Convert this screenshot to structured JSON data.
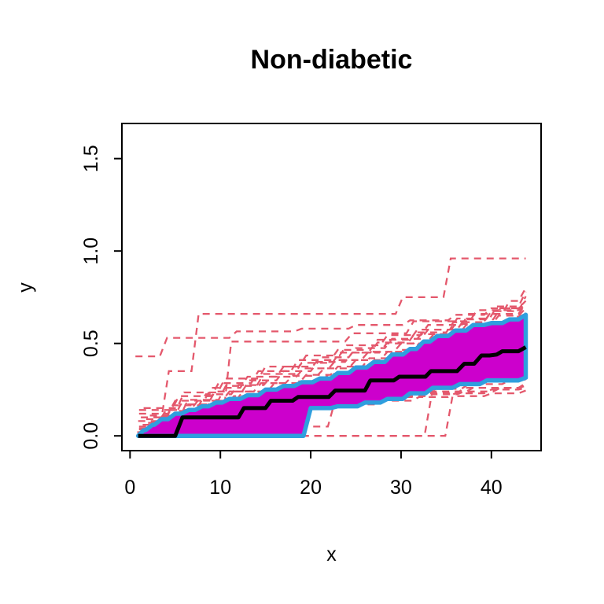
{
  "title": "Non-diabetic",
  "chart_data": {
    "type": "line",
    "title": "Non-diabetic",
    "xlabel": "x",
    "ylabel": "y",
    "x_ticks": [
      0,
      10,
      20,
      30,
      40
    ],
    "x_tick_labels": [
      "0",
      "10",
      "20",
      "30",
      "40"
    ],
    "y_ticks": [
      0.0,
      0.5,
      1.0,
      1.5
    ],
    "y_tick_labels": [
      "0.0",
      "0.5",
      "1.0",
      "1.5"
    ],
    "xlim": [
      -0.9,
      45.5
    ],
    "ylim": [
      -0.08,
      1.69
    ],
    "grid": false,
    "legend": "none",
    "colors": {
      "band_fill": "#CC00CC",
      "band_border": "#2F9FDE",
      "median": "#000000",
      "curves": "#E4586C",
      "axis": "#000000"
    },
    "band": {
      "upper": [
        [
          0.9,
          0
        ],
        [
          1.5,
          0.03
        ],
        [
          2.5,
          0.06
        ],
        [
          3.5,
          0.09
        ],
        [
          5,
          0.12
        ],
        [
          6.5,
          0.14
        ],
        [
          8,
          0.16
        ],
        [
          9.5,
          0.18
        ],
        [
          11,
          0.2
        ],
        [
          13,
          0.22
        ],
        [
          15,
          0.25
        ],
        [
          17,
          0.27
        ],
        [
          19,
          0.29
        ],
        [
          21,
          0.31
        ],
        [
          23,
          0.34
        ],
        [
          25,
          0.37
        ],
        [
          27,
          0.4
        ],
        [
          29,
          0.44
        ],
        [
          31,
          0.47
        ],
        [
          32.5,
          0.51
        ],
        [
          34,
          0.54
        ],
        [
          36,
          0.57
        ],
        [
          38,
          0.6
        ],
        [
          40,
          0.61
        ],
        [
          42,
          0.63
        ],
        [
          43.8,
          0.655
        ]
      ],
      "lower": [
        [
          0.9,
          0
        ],
        [
          18.8,
          0
        ],
        [
          20,
          0.15
        ],
        [
          23,
          0.16
        ],
        [
          26,
          0.18
        ],
        [
          28.5,
          0.2
        ],
        [
          31,
          0.23
        ],
        [
          33.5,
          0.26
        ],
        [
          36.5,
          0.28
        ],
        [
          39.5,
          0.3
        ],
        [
          43.8,
          0.315
        ]
      ]
    },
    "median": [
      [
        0.9,
        0
      ],
      [
        4.9,
        0
      ],
      [
        5.8,
        0.1
      ],
      [
        12,
        0.1
      ],
      [
        12.6,
        0.15
      ],
      [
        15,
        0.15
      ],
      [
        15.6,
        0.19
      ],
      [
        18,
        0.19
      ],
      [
        18.6,
        0.21
      ],
      [
        22,
        0.21
      ],
      [
        22.7,
        0.245
      ],
      [
        26,
        0.245
      ],
      [
        26.6,
        0.3
      ],
      [
        29.2,
        0.3
      ],
      [
        29.8,
        0.32
      ],
      [
        32.7,
        0.32
      ],
      [
        33.3,
        0.35
      ],
      [
        35.8,
        0.35
      ],
      [
        37,
        0.39
      ],
      [
        38.9,
        0.435
      ],
      [
        40.6,
        0.44
      ],
      [
        41.2,
        0.458
      ],
      [
        43,
        0.458
      ],
      [
        43.8,
        0.48
      ]
    ],
    "curves": [
      [
        [
          0.9,
          0
        ],
        [
          2.6,
          0.05
        ],
        [
          3.4,
          0.1
        ],
        [
          4.3,
          0.35
        ],
        [
          5.6,
          0.35
        ],
        [
          7.6,
          0.66
        ],
        [
          29.3,
          0.66
        ],
        [
          30.2,
          0.75
        ],
        [
          34.6,
          0.75
        ],
        [
          35.5,
          0.96
        ],
        [
          43.8,
          0.96
        ]
      ],
      [
        [
          1,
          0.02
        ],
        [
          4,
          0.07
        ],
        [
          8,
          0.11
        ],
        [
          10,
          0.14
        ],
        [
          11.2,
          0.51
        ],
        [
          23.8,
          0.51
        ],
        [
          24.6,
          0.555
        ],
        [
          30.6,
          0.555
        ],
        [
          31.4,
          0.62
        ],
        [
          37.6,
          0.62
        ],
        [
          38.4,
          0.68
        ],
        [
          43.8,
          0.71
        ]
      ],
      [
        [
          0.6,
          0.43
        ],
        [
          3.3,
          0.43
        ],
        [
          4.1,
          0.53
        ],
        [
          10.8,
          0.53
        ],
        [
          11.8,
          0.565
        ],
        [
          19,
          0.58
        ],
        [
          25,
          0.6
        ],
        [
          31,
          0.625
        ],
        [
          36,
          0.655
        ],
        [
          40,
          0.69
        ],
        [
          43.8,
          0.72
        ]
      ],
      [
        [
          0.9,
          0
        ],
        [
          32.6,
          0
        ],
        [
          33.4,
          0.225
        ],
        [
          37,
          0.24
        ],
        [
          41,
          0.26
        ],
        [
          43.8,
          0.27
        ]
      ],
      [
        [
          0.9,
          0
        ],
        [
          34.8,
          0
        ],
        [
          35.7,
          0.215
        ],
        [
          40,
          0.23
        ],
        [
          43.8,
          0.245
        ]
      ],
      [
        [
          1,
          0
        ],
        [
          5,
          0.02
        ],
        [
          10,
          0.04
        ],
        [
          15,
          0.05
        ],
        [
          21.9,
          0.05
        ],
        [
          22.7,
          0.19
        ],
        [
          27,
          0.21
        ],
        [
          32,
          0.23
        ],
        [
          37,
          0.26
        ],
        [
          43.8,
          0.28
        ]
      ],
      [
        [
          1,
          0
        ],
        [
          3,
          0.03
        ],
        [
          7,
          0.06
        ],
        [
          11,
          0.09
        ],
        [
          15,
          0.12
        ],
        [
          19.5,
          0.155
        ],
        [
          24,
          0.17
        ],
        [
          28,
          0.19
        ],
        [
          32,
          0.21
        ],
        [
          36,
          0.23
        ],
        [
          40,
          0.25
        ],
        [
          43.8,
          0.26
        ]
      ],
      [
        [
          1.3,
          0.01
        ],
        [
          4,
          0.05
        ],
        [
          8,
          0.08
        ],
        [
          12,
          0.11
        ],
        [
          16,
          0.14
        ],
        [
          20,
          0.17
        ],
        [
          24.5,
          0.19
        ],
        [
          29,
          0.215
        ],
        [
          33.5,
          0.24
        ],
        [
          38,
          0.26
        ],
        [
          43.8,
          0.285
        ]
      ],
      [
        [
          0.8,
          0.02
        ],
        [
          3.5,
          0.06
        ],
        [
          7.5,
          0.1
        ],
        [
          11.5,
          0.13
        ],
        [
          15.5,
          0.16
        ],
        [
          19.8,
          0.18
        ],
        [
          24,
          0.2
        ],
        [
          28.5,
          0.23
        ],
        [
          33,
          0.255
        ],
        [
          37.5,
          0.28
        ],
        [
          42,
          0.3
        ],
        [
          43.8,
          0.305
        ]
      ],
      [
        [
          1.6,
          0.03
        ],
        [
          5,
          0.08
        ],
        [
          9,
          0.12
        ],
        [
          13,
          0.15
        ],
        [
          17,
          0.18
        ],
        [
          21,
          0.2
        ],
        [
          25.5,
          0.225
        ],
        [
          30,
          0.25
        ],
        [
          34.5,
          0.275
        ],
        [
          39,
          0.3
        ],
        [
          43.8,
          0.32
        ]
      ],
      [
        [
          1,
          0.04
        ],
        [
          4.5,
          0.09
        ],
        [
          8.5,
          0.13
        ],
        [
          12.5,
          0.165
        ],
        [
          16.5,
          0.19
        ],
        [
          20.5,
          0.215
        ],
        [
          25,
          0.24
        ],
        [
          29.5,
          0.265
        ],
        [
          34,
          0.29
        ],
        [
          38.5,
          0.31
        ],
        [
          43.8,
          0.335
        ]
      ],
      [
        [
          2,
          0.05
        ],
        [
          6,
          0.1
        ],
        [
          10,
          0.14
        ],
        [
          14,
          0.175
        ],
        [
          18,
          0.205
        ],
        [
          22,
          0.23
        ],
        [
          26.5,
          0.255
        ],
        [
          31,
          0.28
        ],
        [
          35.5,
          0.3
        ],
        [
          40,
          0.325
        ],
        [
          43.8,
          0.35
        ]
      ],
      [
        [
          1,
          0.05
        ],
        [
          3.5,
          0.1
        ],
        [
          7,
          0.145
        ],
        [
          10.5,
          0.185
        ],
        [
          14,
          0.225
        ],
        [
          17.5,
          0.265
        ],
        [
          21,
          0.3
        ],
        [
          24.5,
          0.34
        ],
        [
          28,
          0.38
        ],
        [
          31.5,
          0.42
        ],
        [
          35,
          0.46
        ],
        [
          38.5,
          0.51
        ],
        [
          42,
          0.55
        ],
        [
          43.8,
          0.57
        ]
      ],
      [
        [
          1.4,
          0.06
        ],
        [
          4.5,
          0.12
        ],
        [
          8,
          0.17
        ],
        [
          11.5,
          0.215
        ],
        [
          15,
          0.255
        ],
        [
          18.5,
          0.295
        ],
        [
          22,
          0.335
        ],
        [
          25.5,
          0.375
        ],
        [
          29,
          0.415
        ],
        [
          32.5,
          0.46
        ],
        [
          36,
          0.505
        ],
        [
          39.5,
          0.555
        ],
        [
          43,
          0.605
        ],
        [
          43.8,
          0.62
        ]
      ],
      [
        [
          0.9,
          0.08
        ],
        [
          4,
          0.14
        ],
        [
          7.5,
          0.19
        ],
        [
          11,
          0.24
        ],
        [
          14.5,
          0.285
        ],
        [
          18,
          0.325
        ],
        [
          21.5,
          0.365
        ],
        [
          25,
          0.41
        ],
        [
          28.5,
          0.455
        ],
        [
          32,
          0.5
        ],
        [
          35.5,
          0.545
        ],
        [
          39,
          0.595
        ],
        [
          42.5,
          0.645
        ],
        [
          43.8,
          0.66
        ]
      ],
      [
        [
          2,
          0.07
        ],
        [
          5.5,
          0.135
        ],
        [
          9,
          0.19
        ],
        [
          12.5,
          0.24
        ],
        [
          16,
          0.285
        ],
        [
          19.5,
          0.33
        ],
        [
          23,
          0.375
        ],
        [
          26.5,
          0.42
        ],
        [
          30,
          0.465
        ],
        [
          33.5,
          0.515
        ],
        [
          37,
          0.565
        ],
        [
          40.5,
          0.615
        ],
        [
          43.8,
          0.665
        ]
      ],
      [
        [
          1.2,
          0.1
        ],
        [
          4.8,
          0.165
        ],
        [
          8.4,
          0.225
        ],
        [
          12,
          0.275
        ],
        [
          15.6,
          0.32
        ],
        [
          19.2,
          0.365
        ],
        [
          22.8,
          0.41
        ],
        [
          26.4,
          0.455
        ],
        [
          30,
          0.5
        ],
        [
          33.6,
          0.55
        ],
        [
          37.2,
          0.6
        ],
        [
          40.8,
          0.65
        ],
        [
          43.8,
          0.69
        ]
      ],
      [
        [
          1.8,
          0.09
        ],
        [
          5.6,
          0.17
        ],
        [
          9.4,
          0.24
        ],
        [
          13.2,
          0.3
        ],
        [
          17,
          0.35
        ],
        [
          20.8,
          0.4
        ],
        [
          24.6,
          0.45
        ],
        [
          28.4,
          0.5
        ],
        [
          32.2,
          0.55
        ],
        [
          36,
          0.605
        ],
        [
          39.8,
          0.66
        ],
        [
          43.8,
          0.715
        ]
      ],
      [
        [
          1,
          0.12
        ],
        [
          5,
          0.19
        ],
        [
          9,
          0.26
        ],
        [
          13,
          0.32
        ],
        [
          17,
          0.375
        ],
        [
          21,
          0.425
        ],
        [
          25,
          0.475
        ],
        [
          29,
          0.525
        ],
        [
          33,
          0.575
        ],
        [
          37,
          0.63
        ],
        [
          41,
          0.69
        ],
        [
          43.8,
          0.73
        ]
      ],
      [
        [
          2.2,
          0.11
        ],
        [
          6.4,
          0.195
        ],
        [
          10.6,
          0.27
        ],
        [
          14.8,
          0.335
        ],
        [
          19,
          0.395
        ],
        [
          23.2,
          0.45
        ],
        [
          27.4,
          0.505
        ],
        [
          31.6,
          0.56
        ],
        [
          35.8,
          0.615
        ],
        [
          40,
          0.675
        ],
        [
          43.8,
          0.755
        ]
      ],
      [
        [
          1,
          0.14
        ],
        [
          5.4,
          0.215
        ],
        [
          9.8,
          0.285
        ],
        [
          14.2,
          0.35
        ],
        [
          18.6,
          0.41
        ],
        [
          23,
          0.465
        ],
        [
          27.4,
          0.52
        ],
        [
          31.8,
          0.575
        ],
        [
          36.2,
          0.635
        ],
        [
          40.6,
          0.7
        ],
        [
          43.8,
          0.78
        ]
      ],
      [
        [
          1.5,
          0.15
        ],
        [
          6,
          0.235
        ],
        [
          10.5,
          0.31
        ],
        [
          15,
          0.375
        ],
        [
          19.5,
          0.435
        ],
        [
          24,
          0.49
        ],
        [
          28.5,
          0.545
        ],
        [
          33,
          0.6
        ],
        [
          37.5,
          0.66
        ],
        [
          42,
          0.73
        ],
        [
          43.8,
          0.8
        ]
      ],
      [
        [
          1,
          0.015
        ],
        [
          4.5,
          0.06
        ],
        [
          8.5,
          0.105
        ],
        [
          13,
          0.15
        ],
        [
          17.5,
          0.195
        ],
        [
          22,
          0.24
        ],
        [
          26.5,
          0.285
        ],
        [
          31,
          0.335
        ],
        [
          35.5,
          0.39
        ],
        [
          40,
          0.445
        ],
        [
          43.8,
          0.49
        ]
      ],
      [
        [
          1.8,
          0.025
        ],
        [
          6,
          0.075
        ],
        [
          10.5,
          0.125
        ],
        [
          15,
          0.175
        ],
        [
          19.5,
          0.225
        ],
        [
          24,
          0.275
        ],
        [
          28.5,
          0.325
        ],
        [
          33,
          0.38
        ],
        [
          37.5,
          0.44
        ],
        [
          42,
          0.5
        ],
        [
          43.8,
          0.525
        ]
      ],
      [
        [
          1,
          0.035
        ],
        [
          5.2,
          0.085
        ],
        [
          9.6,
          0.14
        ],
        [
          14,
          0.19
        ],
        [
          18.4,
          0.24
        ],
        [
          22.8,
          0.29
        ],
        [
          27.2,
          0.34
        ],
        [
          31.6,
          0.395
        ],
        [
          36,
          0.455
        ],
        [
          40.4,
          0.52
        ],
        [
          43.8,
          0.555
        ]
      ],
      [
        [
          2,
          0.045
        ],
        [
          6.5,
          0.1
        ],
        [
          11,
          0.155
        ],
        [
          15.5,
          0.21
        ],
        [
          20,
          0.26
        ],
        [
          24.5,
          0.31
        ],
        [
          29,
          0.36
        ],
        [
          33.5,
          0.415
        ],
        [
          38,
          0.475
        ],
        [
          42.5,
          0.54
        ],
        [
          43.8,
          0.565
        ]
      ]
    ]
  }
}
